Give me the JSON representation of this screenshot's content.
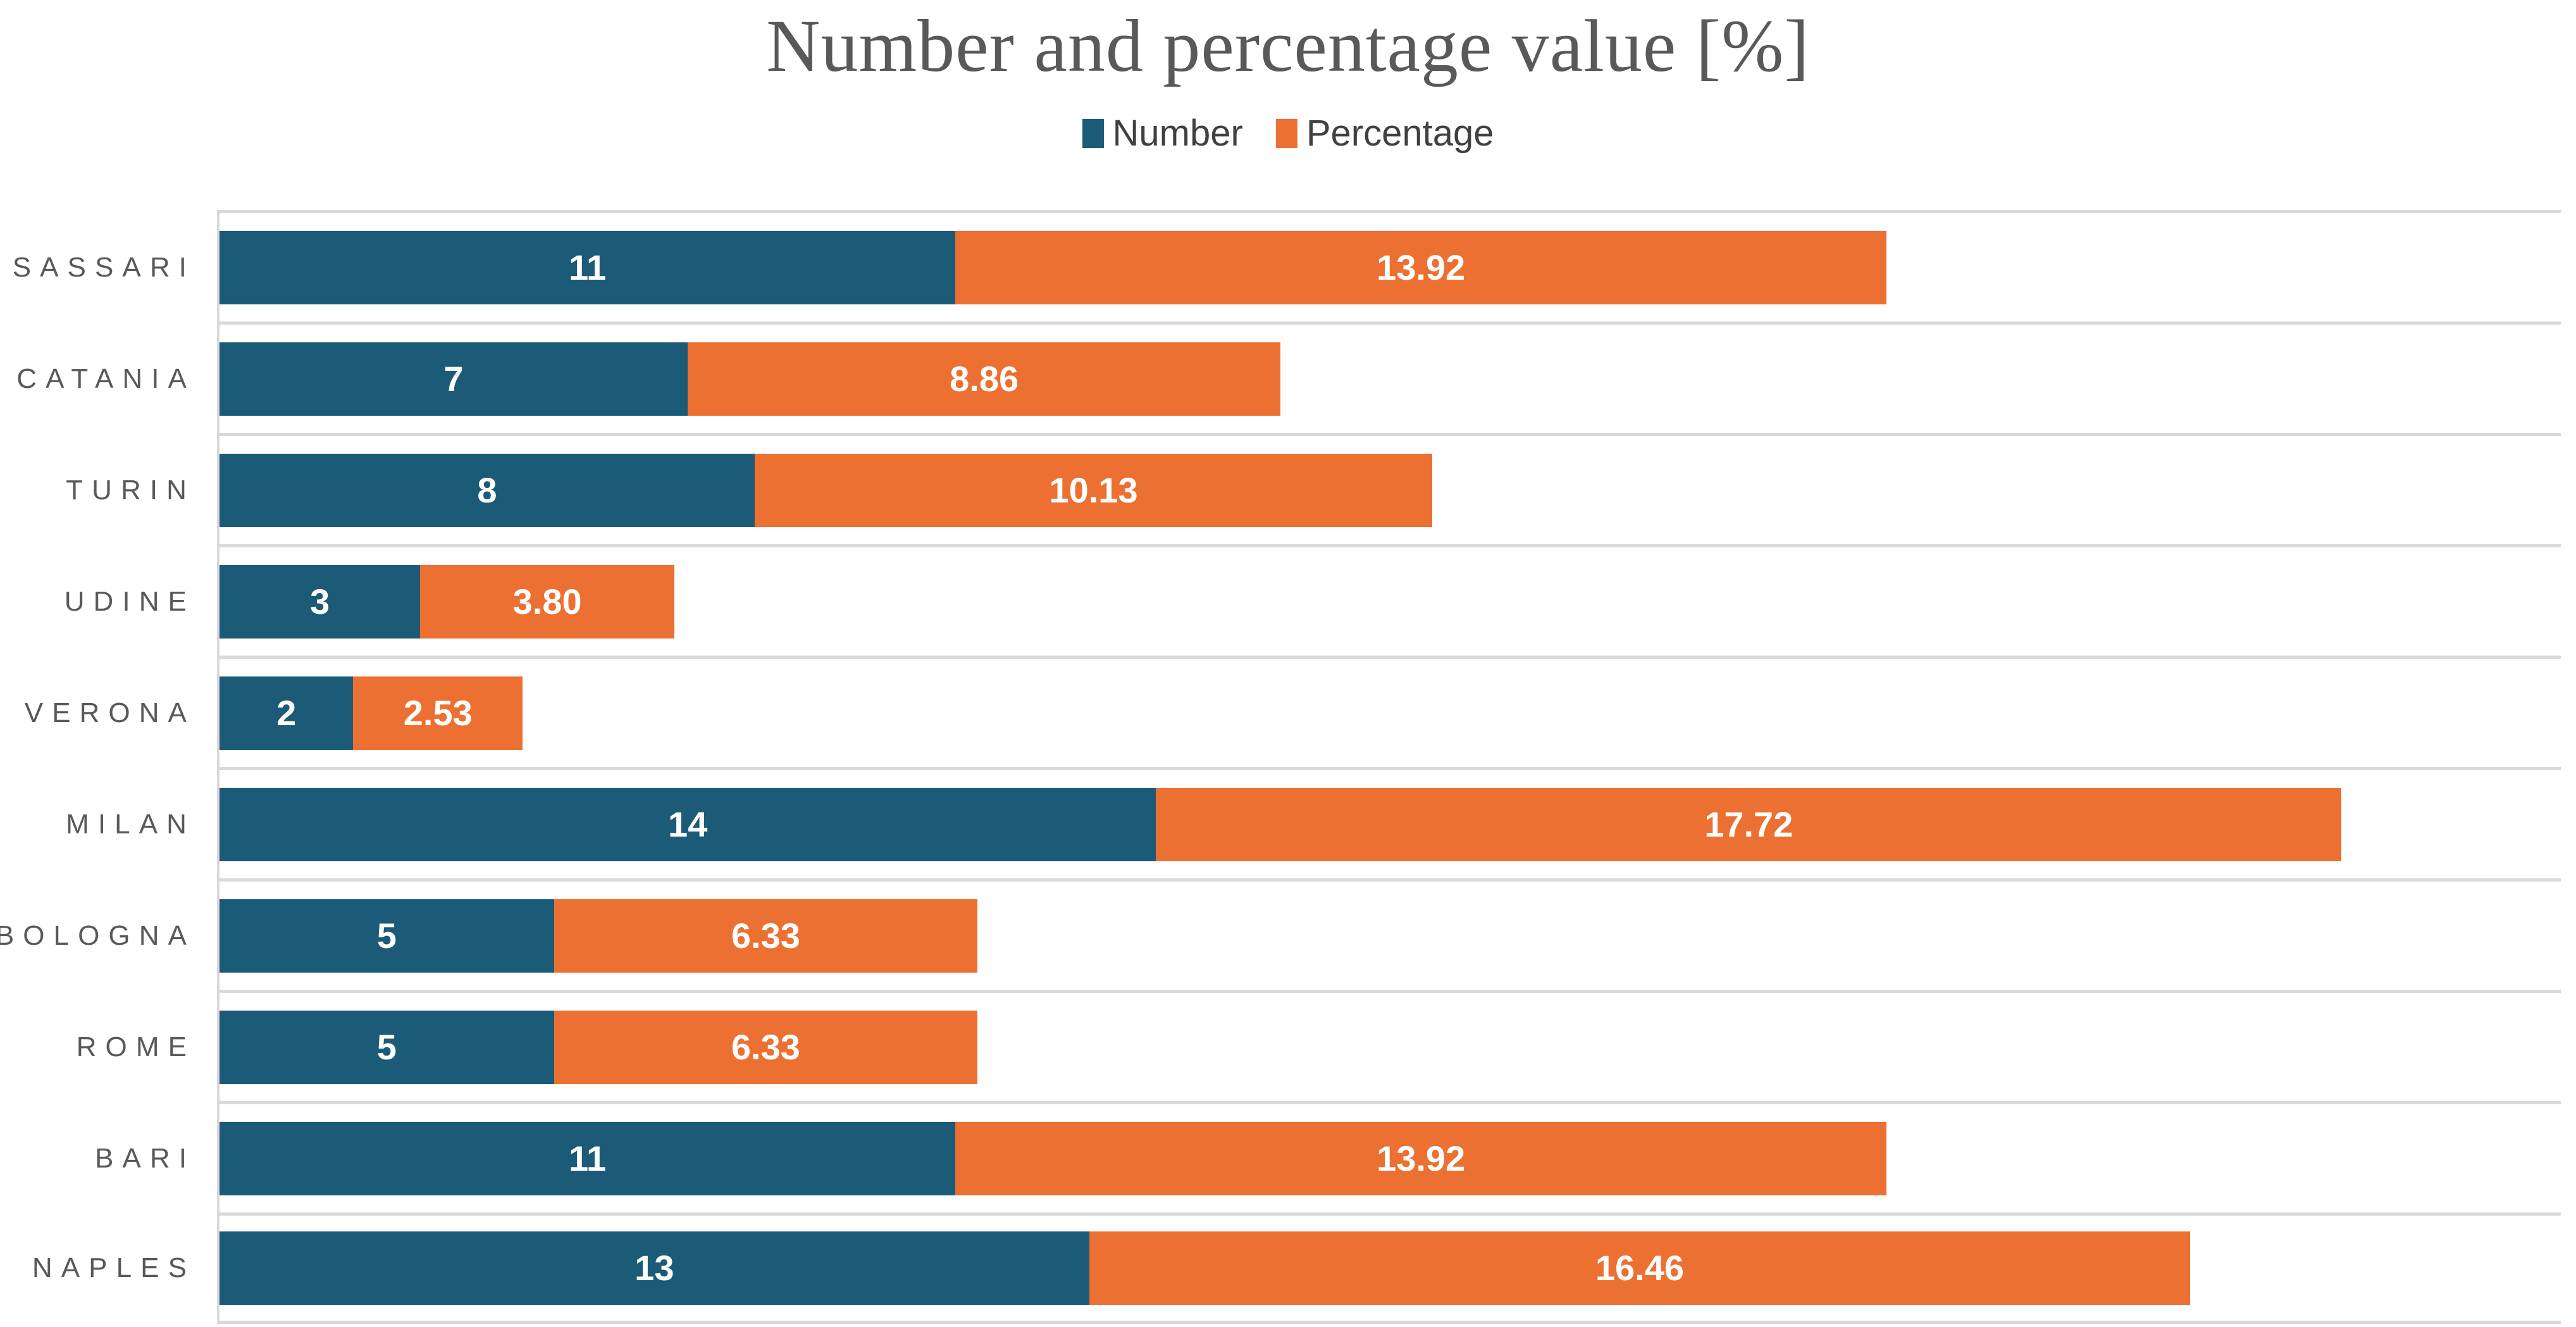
{
  "chart_data": {
    "type": "bar",
    "orientation": "horizontal-stacked",
    "title": "Number and percentage value [%]",
    "categories": [
      "SASSARI",
      "CATANIA",
      "TURIN",
      "UDINE",
      "VERONA",
      "MILAN",
      "BOLOGNA",
      "ROME",
      "BARI",
      "NAPLES"
    ],
    "series": [
      {
        "name": "Number",
        "color": "#1c5b78",
        "values": [
          11,
          7,
          8,
          3,
          2,
          14,
          5,
          5,
          11,
          13
        ],
        "labels": [
          "11",
          "7",
          "8",
          "3",
          "2",
          "14",
          "5",
          "5",
          "11",
          "13"
        ]
      },
      {
        "name": "Percentage",
        "color": "#ec7031",
        "values": [
          13.92,
          8.86,
          10.13,
          3.8,
          2.53,
          17.72,
          6.33,
          6.33,
          13.92,
          16.46
        ],
        "labels": [
          "13.92",
          "8.86",
          "10.13",
          "3.80",
          "2.53",
          "17.72",
          "6.33",
          "6.33",
          "13.92",
          "16.46"
        ]
      }
    ],
    "xlim": [
      0,
      35
    ],
    "legend_position": "top-center",
    "gridlines": "horizontal-category-separators",
    "colors": {
      "grid": "#d9d9d9",
      "title_text": "#595959",
      "category_text": "#595959",
      "legend_text": "#404040",
      "bar_label_text": "#ffffff"
    }
  }
}
